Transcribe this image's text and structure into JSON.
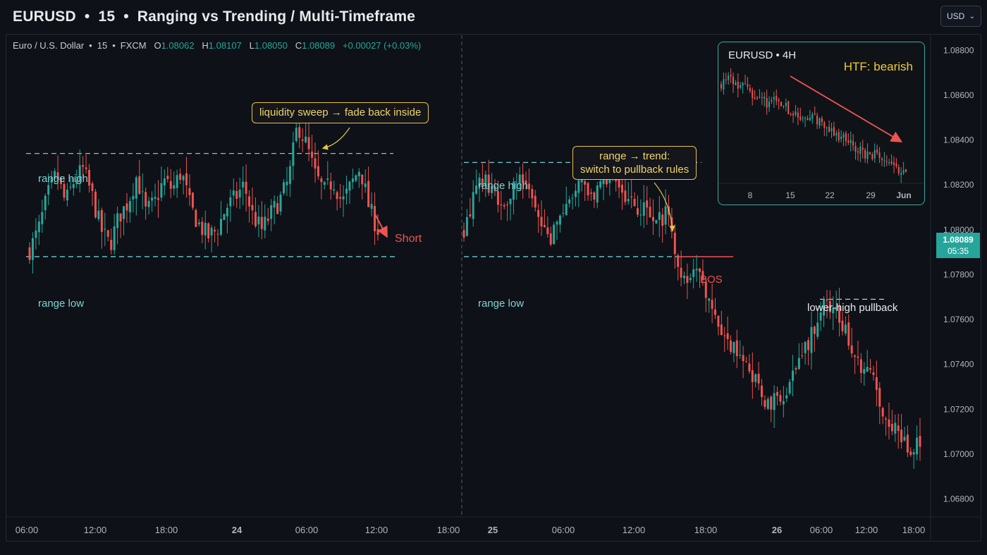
{
  "header": {
    "symbol": "EURUSD",
    "interval": "15",
    "title": "Ranging vs Trending / Multi-Timeframe",
    "separator": "•",
    "currency": "USD"
  },
  "symbol_info": {
    "name": "Euro / U.S. Dollar",
    "interval": "15",
    "exchange": "FXCM",
    "open_label": "O",
    "open": "1.08062",
    "high_label": "H",
    "high": "1.08107",
    "low_label": "L",
    "low": "1.08050",
    "close_label": "C",
    "close": "1.08089",
    "change": "+0.00027 (+0.03%)"
  },
  "price_badge": {
    "price": "1.08089",
    "countdown": "05:35"
  },
  "annotations": {
    "sweep": "liquidity sweep → fade back inside",
    "switch_line1": "range → trend:",
    "switch_line2": "switch to pullback rules",
    "range_high_left": "range high",
    "range_low_left": "range low",
    "range_high_right": "range high",
    "range_low_right": "range low",
    "short": "Short",
    "bos": "BOS",
    "lower_high": "lower-high pullback"
  },
  "inset": {
    "title": "EURUSD • 4H",
    "htf": "HTF: bearish",
    "x_ticks": [
      "8",
      "15",
      "22",
      "29",
      "Jun"
    ]
  },
  "colors": {
    "bull": "#26a69a",
    "bear": "#ef5350",
    "range_line": "#6ad0d0",
    "bos_line": "#ef5350",
    "note_border": "#e5c44b"
  },
  "chart_data": {
    "type": "candlestick",
    "y_ticks": [
      "1.08800",
      "1.08600",
      "1.08400",
      "1.08200",
      "1.08000",
      "1.07800",
      "1.07600",
      "1.07400",
      "1.07200",
      "1.07000",
      "1.06800"
    ],
    "y_range": [
      1.0672,
      1.0887
    ],
    "x_ticks": [
      {
        "label": "06:00",
        "bold": false
      },
      {
        "label": "12:00",
        "bold": false
      },
      {
        "label": "18:00",
        "bold": false
      },
      {
        "label": "24",
        "bold": true
      },
      {
        "label": "06:00",
        "bold": false
      },
      {
        "label": "12:00",
        "bold": false
      },
      {
        "label": "18:00",
        "bold": false
      },
      {
        "label": "25",
        "bold": true
      },
      {
        "label": "06:00",
        "bold": false
      },
      {
        "label": "12:00",
        "bold": false
      },
      {
        "label": "18:00",
        "bold": false
      },
      {
        "label": "26",
        "bold": true
      },
      {
        "label": "06:00",
        "bold": false
      },
      {
        "label": "12:00",
        "bold": false
      },
      {
        "label": "18:00",
        "bold": false
      }
    ],
    "levels": {
      "left_range_high": 1.0834,
      "left_range_low": 1.0788,
      "right_range_high": 1.083,
      "right_range_low": 1.0788,
      "bos": 1.0788,
      "lower_high": 1.0769
    },
    "left_path": [
      1.0791,
      1.08,
      1.0815,
      1.0825,
      1.0812,
      1.0822,
      1.0827,
      1.0815,
      1.08,
      1.0793,
      1.0806,
      1.0812,
      1.0824,
      1.0808,
      1.0812,
      1.0822,
      1.0818,
      1.0826,
      1.081,
      1.0802,
      1.0797,
      1.08,
      1.081,
      1.0814,
      1.082,
      1.0806,
      1.08,
      1.0807,
      1.0813,
      1.0822,
      1.0847,
      1.0838,
      1.0824,
      1.0817,
      1.0822,
      1.0812,
      1.082,
      1.0828,
      1.081,
      1.08
    ],
    "right_path": [
      1.0801,
      1.0815,
      1.0822,
      1.0818,
      1.081,
      1.082,
      1.0825,
      1.081,
      1.08,
      1.0796,
      1.0804,
      1.0815,
      1.082,
      1.0812,
      1.0818,
      1.0825,
      1.082,
      1.0812,
      1.081,
      1.0808,
      1.0803,
      1.0807,
      1.0788,
      1.0775,
      1.0782,
      1.0772,
      1.0764,
      1.0749,
      1.0745,
      1.0738,
      1.0732,
      1.0725,
      1.0723,
      1.0727,
      1.0735,
      1.0745,
      1.0755,
      1.0769,
      1.0765,
      1.0758,
      1.0748,
      1.074,
      1.0735,
      1.0722,
      1.0715,
      1.0708,
      1.0702,
      1.0705
    ],
    "inset_path": [
      1.0865,
      1.0868,
      1.0864,
      1.086,
      1.0855,
      1.0851,
      1.0853,
      1.0848,
      1.0844,
      1.084,
      1.0842,
      1.0836,
      1.0831,
      1.0827,
      1.0823,
      1.0818,
      1.0814,
      1.0816,
      1.081,
      1.0805,
      1.0802
    ]
  }
}
